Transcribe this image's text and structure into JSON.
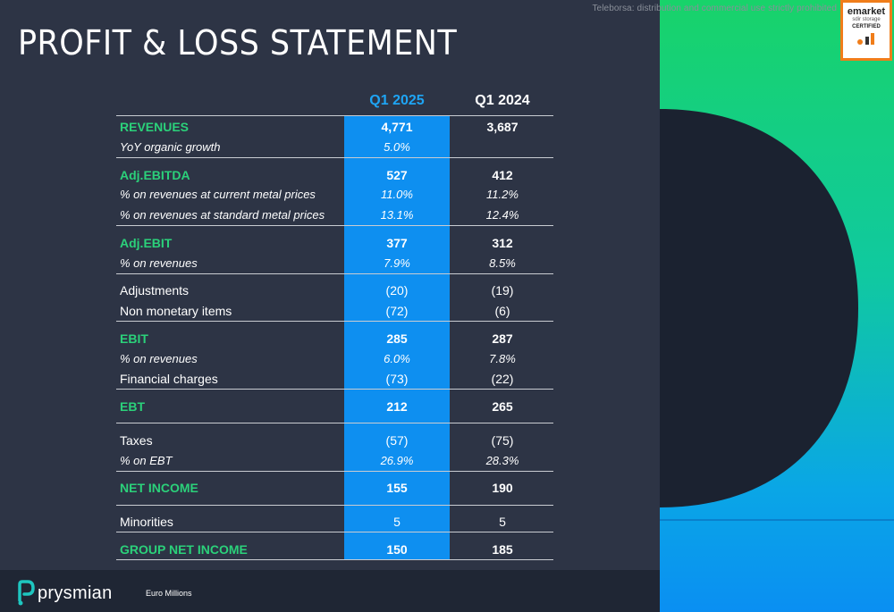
{
  "watermark": "Teleborsa: distribution and commercial use strictly prohibited",
  "badge": {
    "line1": "emarket",
    "line2": "sdir storage",
    "line3": "CERTIFIED"
  },
  "title": "PROFIT & LOSS STATEMENT",
  "columns": {
    "current": "Q1 2025",
    "previous": "Q1 2024"
  },
  "rows": [
    {
      "label": "REVENUES",
      "q1_2025": "4,771",
      "q1_2024": "3,687",
      "style": "head"
    },
    {
      "label": "YoY organic growth",
      "q1_2025": "5.0%",
      "q1_2024": "",
      "style": "sub"
    },
    {
      "label": "Adj.EBITDA",
      "q1_2025": "527",
      "q1_2024": "412",
      "style": "head"
    },
    {
      "label": "% on revenues at current metal prices",
      "q1_2025": "11.0%",
      "q1_2024": "11.2%",
      "style": "sub"
    },
    {
      "label": "% on revenues at standard metal prices",
      "q1_2025": "13.1%",
      "q1_2024": "12.4%",
      "style": "sub"
    },
    {
      "label": "Adj.EBIT",
      "q1_2025": "377",
      "q1_2024": "312",
      "style": "head"
    },
    {
      "label": "% on revenues",
      "q1_2025": "7.9%",
      "q1_2024": "8.5%",
      "style": "sub"
    },
    {
      "label": "Adjustments",
      "q1_2025": "(20)",
      "q1_2024": "(19)",
      "style": "plain"
    },
    {
      "label": "Non monetary items",
      "q1_2025": "(72)",
      "q1_2024": "(6)",
      "style": "plain"
    },
    {
      "label": "EBIT",
      "q1_2025": "285",
      "q1_2024": "287",
      "style": "head"
    },
    {
      "label": "% on revenues",
      "q1_2025": "6.0%",
      "q1_2024": "7.8%",
      "style": "sub"
    },
    {
      "label": "Financial charges",
      "q1_2025": "(73)",
      "q1_2024": "(22)",
      "style": "plain"
    },
    {
      "label": "EBT",
      "q1_2025": "212",
      "q1_2024": "265",
      "style": "head"
    },
    {
      "label": "Taxes",
      "q1_2025": "(57)",
      "q1_2024": "(75)",
      "style": "plain"
    },
    {
      "label": "% on EBT",
      "q1_2025": "26.9%",
      "q1_2024": "28.3%",
      "style": "sub"
    },
    {
      "label": "NET INCOME",
      "q1_2025": "155",
      "q1_2024": "190",
      "style": "head"
    },
    {
      "label": "Minorities",
      "q1_2025": "5",
      "q1_2024": "5",
      "style": "plain"
    },
    {
      "label": "GROUP NET INCOME",
      "q1_2025": "150",
      "q1_2024": "185",
      "style": "head"
    }
  ],
  "footer": {
    "brand": "prysmian",
    "units": "Euro Millions"
  },
  "colors": {
    "accent_green": "#2bd17a",
    "highlight_blue": "#0e8ff0",
    "header_blue": "#1ea5f5",
    "badge_orange": "#f07d1a"
  }
}
